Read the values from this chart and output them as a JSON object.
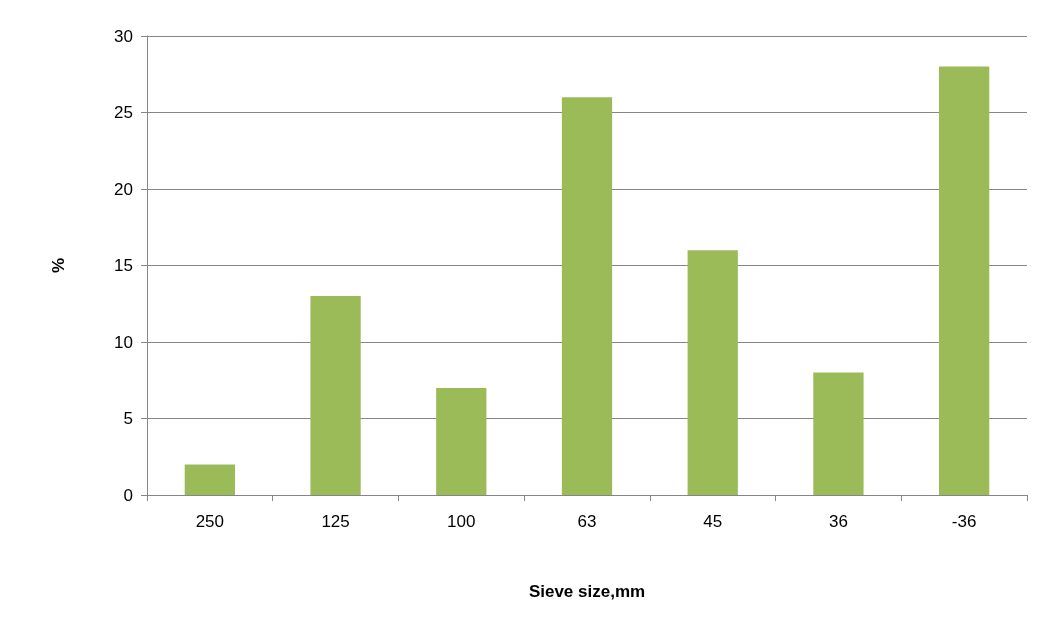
{
  "chart_data": {
    "type": "bar",
    "xlabel": "Sieve size,mm",
    "ylabel": "%",
    "categories": [
      "250",
      "125",
      "100",
      "63",
      "45",
      "36",
      "-36"
    ],
    "values": [
      2,
      13,
      7,
      26,
      16,
      8,
      28
    ],
    "color": "#9bbb59",
    "ylim": [
      0,
      30
    ],
    "yticks": [
      0,
      5,
      10,
      15,
      20,
      25,
      30
    ],
    "grid": "y"
  }
}
